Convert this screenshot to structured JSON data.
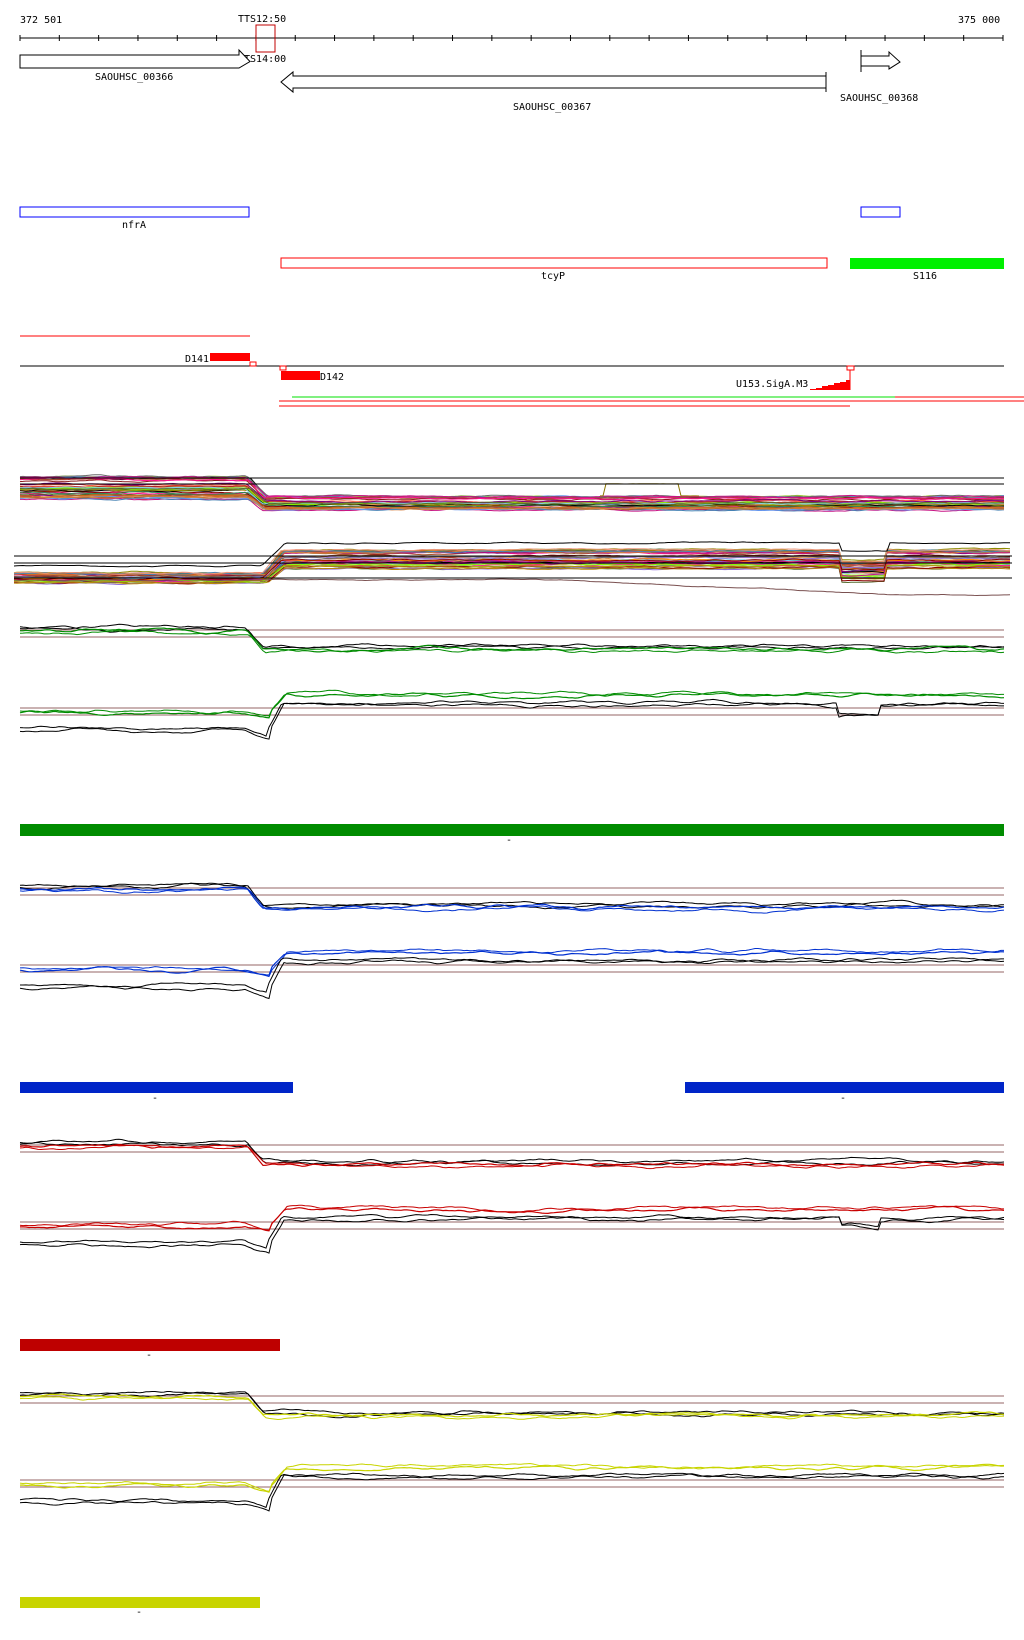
{
  "ruler": {
    "start_label": "372 501",
    "end_label": "375 000",
    "overlap_label_top": "TTS12:50",
    "overlap_label_bottom": "TTS14:00"
  },
  "genes": [
    {
      "label": "SAOUHSC_00366",
      "strand": "+"
    },
    {
      "label": "SAOUHSC_00367",
      "strand": "-"
    },
    {
      "label": "SAOUHSC_00368",
      "strand": "+"
    }
  ],
  "annotations": {
    "nfrA": "nfrA",
    "tcyP": "tcyP",
    "s116": "S116"
  },
  "features": {
    "d141": "D141",
    "d142": "D142",
    "u153": "U153.SigA.M3"
  },
  "condition_bars": [
    {
      "strand_label": "-",
      "color": "#008c00"
    },
    {
      "strand_label": "-",
      "color": "#0025c8"
    },
    {
      "strand_label": "-",
      "color": "#0025c8"
    },
    {
      "strand_label": "-",
      "color": "#be0000"
    },
    {
      "strand_label": "-",
      "color": "#c8d400"
    }
  ],
  "colors": {
    "blue_box": "#0000ff",
    "red_box": "#ff0000",
    "green_feature": "#00f000",
    "reference_line": "#946464",
    "green_trace": "#008c00",
    "blue_trace": "#0030d0",
    "red_trace": "#c80000",
    "yellow_trace": "#c8d400"
  }
}
